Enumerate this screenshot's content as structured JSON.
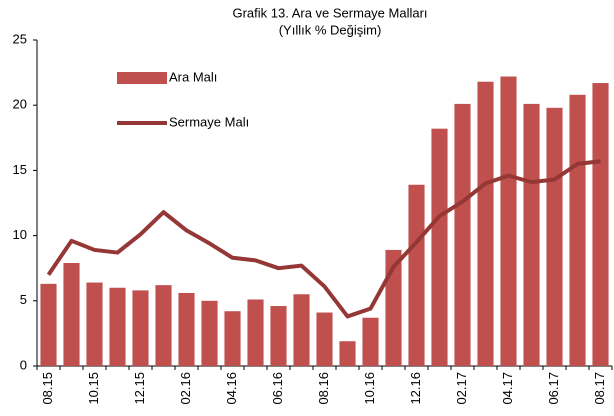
{
  "chart_data": {
    "type": "bar",
    "title": "Grafik 13. Ara ve Sermaye Malları",
    "subtitle": "(Yıllık % Değişim)",
    "categories": [
      "08.15",
      null,
      "10.15",
      null,
      "12.15",
      null,
      "02.16",
      null,
      "04.16",
      null,
      "06.16",
      null,
      "08.16",
      null,
      "10.16",
      null,
      "12.16",
      null,
      "02.17",
      null,
      "04.17",
      null,
      "06.17",
      null,
      "08.17"
    ],
    "series": [
      {
        "name": "Ara Malı",
        "type": "bar",
        "color": "#c0504d",
        "values": [
          6.3,
          7.9,
          6.4,
          6.0,
          5.8,
          6.2,
          5.6,
          5.0,
          4.2,
          5.1,
          4.6,
          5.5,
          4.1,
          1.9,
          3.7,
          8.9,
          13.9,
          18.2,
          20.1,
          21.8,
          22.2,
          20.1,
          19.8,
          20.8,
          21.7
        ]
      },
      {
        "name": "Sermaye Malı",
        "type": "line",
        "color": "#953735",
        "values": [
          7.0,
          9.6,
          8.9,
          8.7,
          10.1,
          11.8,
          10.4,
          9.4,
          8.3,
          8.1,
          7.5,
          7.7,
          6.1,
          3.8,
          4.4,
          7.6,
          9.5,
          11.5,
          12.6,
          14.0,
          14.6,
          14.1,
          14.3,
          15.5,
          15.7
        ]
      }
    ],
    "ylim": [
      0,
      25
    ],
    "yticks": [
      0,
      5,
      10,
      15,
      20,
      25
    ],
    "grid": false,
    "legend": "top-left"
  }
}
